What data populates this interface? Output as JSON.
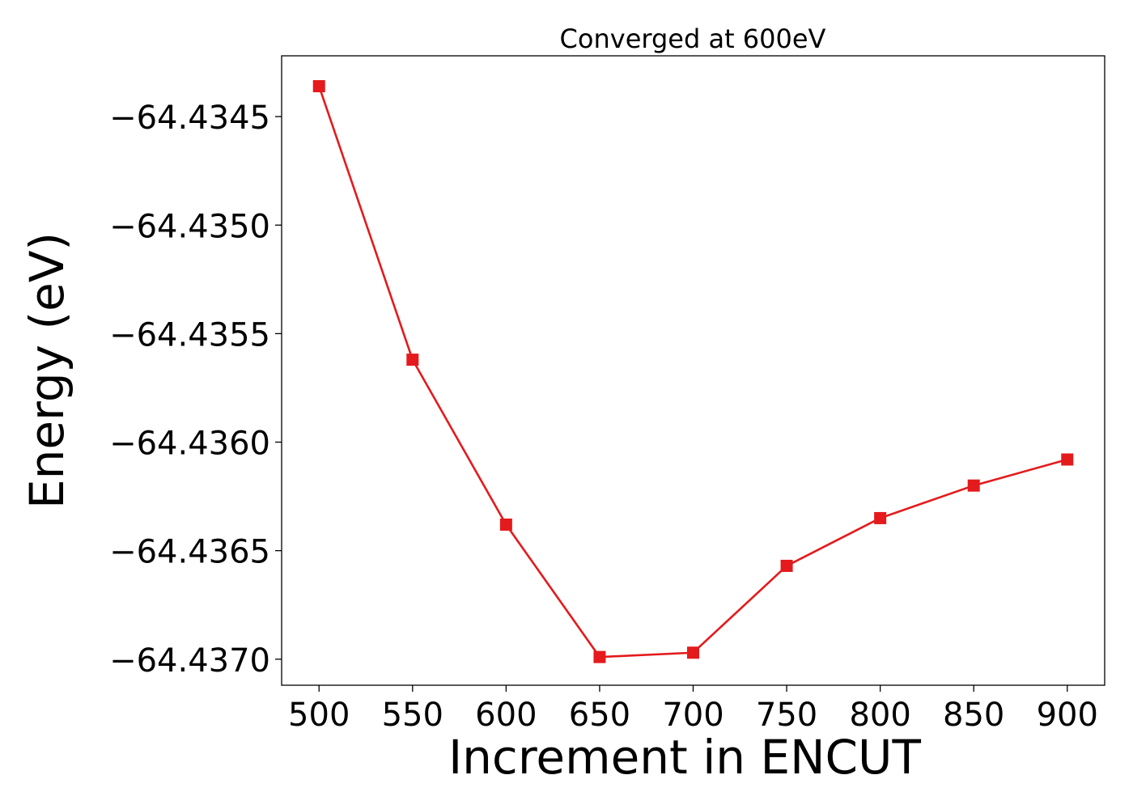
{
  "chart_data": {
    "type": "line",
    "title": "Converged at 600eV",
    "xlabel": "Increment in ENCUT",
    "ylabel": "Energy (eV)",
    "x": [
      500,
      550,
      600,
      650,
      700,
      750,
      800,
      850,
      900
    ],
    "series": [
      {
        "values": [
          -64.43436,
          -64.43562,
          -64.43638,
          -64.43699,
          -64.43697,
          -64.43657,
          -64.43635,
          -64.4362,
          -64.43608
        ]
      }
    ],
    "xticks": [
      "500",
      "550",
      "600",
      "650",
      "700",
      "750",
      "800",
      "850",
      "900"
    ],
    "yticks": [
      "−64.4345",
      "−64.4350",
      "−64.4355",
      "−64.4360",
      "−64.4365",
      "−64.4370"
    ],
    "ytick_values": [
      -64.4345,
      -64.435,
      -64.4355,
      -64.436,
      -64.4365,
      -64.437
    ],
    "xlim": [
      480,
      920
    ],
    "ylim": [
      -64.43712,
      -64.43422
    ],
    "grid": false,
    "marker": "square",
    "color": "#e41a1c"
  }
}
